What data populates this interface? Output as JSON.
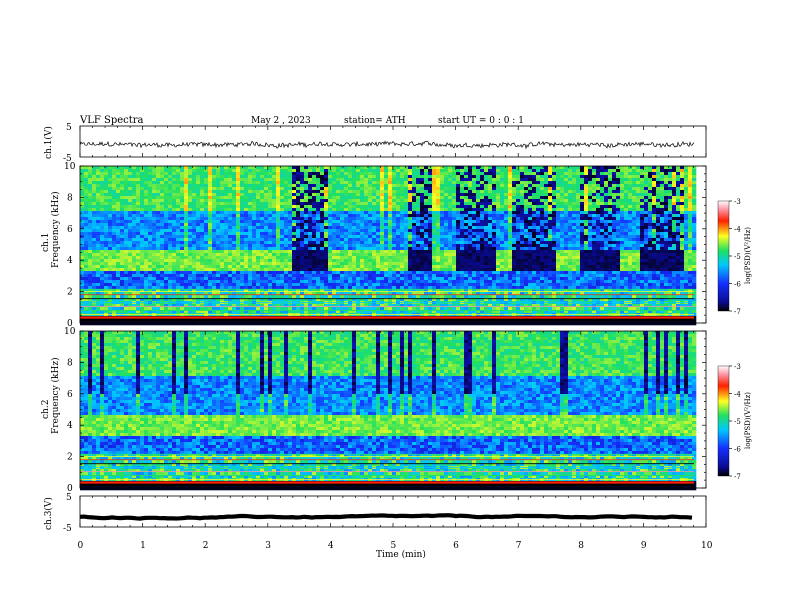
{
  "header": {
    "title": "VLF  Spectra",
    "date": "May 2  , 2023",
    "station": "station= ATH",
    "start": "start  UT  =    0  : 0   : 1"
  },
  "chart_data": [
    {
      "type": "line",
      "panel": "ch1-waveform",
      "ylabel": "ch.1(V)",
      "yticks": [
        "5",
        "-5"
      ],
      "ylim": [
        -5,
        5
      ],
      "xlim": [
        0,
        10
      ],
      "description_level": "noisy waveform near -1 V"
    },
    {
      "type": "heatmap",
      "panel": "ch1-spectrogram",
      "ylabel": "ch.1\nFrequency  (kHz)",
      "ylabel_line1": "ch.1",
      "ylabel_line2": "Frequency  (kHz)",
      "yticks": [
        "0",
        "2",
        "4",
        "6",
        "8",
        "10"
      ],
      "ylim": [
        0,
        10
      ],
      "xlim": [
        0,
        10
      ],
      "colorbar": {
        "label": "log(PSD)(V²/Hz)",
        "ticks": [
          "-3",
          "-4",
          "-5",
          "-6",
          "-7"
        ],
        "range": [
          -7,
          -3
        ]
      },
      "blocks_min": [
        [
          3.35,
          3.9
        ],
        [
          5.2,
          5.6
        ],
        [
          5.95,
          6.6
        ],
        [
          6.9,
          7.6
        ],
        [
          7.95,
          8.6
        ],
        [
          8.9,
          9.6
        ]
      ]
    },
    {
      "type": "heatmap",
      "panel": "ch2-spectrogram",
      "ylabel_line1": "ch.2",
      "ylabel_line2": "Frequency  (kHz)",
      "yticks": [
        "0",
        "2",
        "4",
        "6",
        "8",
        "10"
      ],
      "ylim": [
        0,
        10
      ],
      "xlim": [
        0,
        10
      ],
      "colorbar": {
        "label": "log(PSD)(V²/Hz)",
        "ticks": [
          "-3",
          "-4",
          "-5",
          "-6",
          "-7"
        ],
        "range": [
          -7,
          -3
        ]
      }
    },
    {
      "type": "line",
      "panel": "ch3-waveform",
      "ylabel": "ch.3(V)",
      "yticks": [
        "5",
        "-5"
      ],
      "ylim": [
        -5,
        5
      ],
      "xlim": [
        0,
        10
      ],
      "level_v": -1.8
    }
  ],
  "xaxis": {
    "label": "Time  (min)",
    "ticks": [
      "0",
      "1",
      "2",
      "3",
      "4",
      "5",
      "6",
      "7",
      "8",
      "9",
      "10"
    ]
  }
}
